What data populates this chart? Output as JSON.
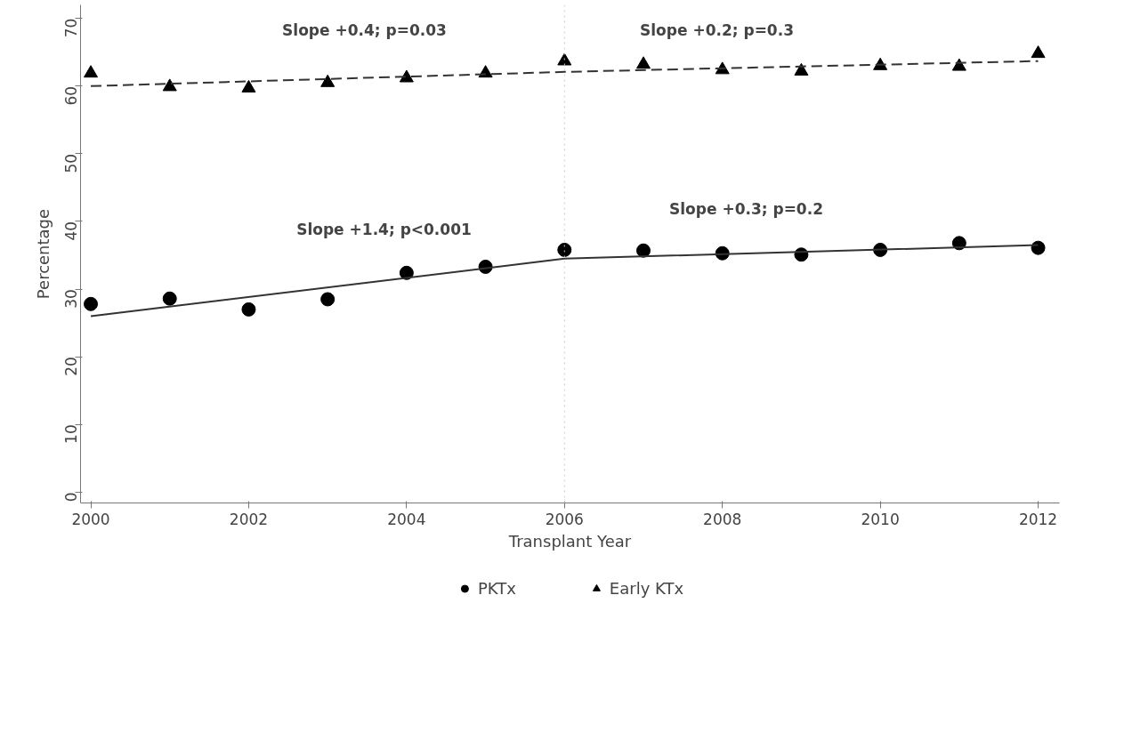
{
  "chart_data": {
    "type": "scatter",
    "xlabel": "Transplant Year",
    "ylabel": "Percentage",
    "x": [
      2000,
      2001,
      2002,
      2003,
      2004,
      2005,
      2006,
      2007,
      2008,
      2009,
      2010,
      2011,
      2012
    ],
    "xlim": [
      1999.87,
      2012.27
    ],
    "ylim": [
      -1.6,
      72
    ],
    "xticks": [
      2000,
      2002,
      2004,
      2006,
      2008,
      2010,
      2012
    ],
    "yticks": [
      0,
      10,
      20,
      30,
      40,
      50,
      60,
      70
    ],
    "grid": false,
    "legend": "bottom",
    "series": [
      {
        "name": "PKTx",
        "color": "#000000",
        "marker": "circle",
        "values": [
          27.8,
          28.6,
          27.0,
          28.5,
          32.4,
          33.3,
          35.8,
          35.7,
          35.3,
          35.1,
          35.8,
          36.8,
          36.1
        ]
      },
      {
        "name": "Early KTx",
        "color": "#000000",
        "marker": "triangle",
        "values": [
          61.9,
          59.9,
          59.7,
          60.5,
          61.2,
          61.9,
          63.7,
          63.2,
          62.4,
          62.2,
          63.0,
          62.9,
          64.8
        ]
      },
      {
        "type": "line",
        "color": "#333333",
        "line_style": "solid",
        "marker": "none",
        "x": [
          2000,
          2006,
          2012
        ],
        "values": [
          26.0,
          34.5,
          36.5
        ]
      },
      {
        "type": "line",
        "color": "#333333",
        "line_style": "dashed",
        "marker": "none",
        "x": [
          2000,
          2006,
          2012
        ],
        "values": [
          60.0,
          62.1,
          63.7
        ]
      }
    ],
    "ref_lines": [
      {
        "axis": "x",
        "value": 2006,
        "color": "#cccccc",
        "line_style": "dotted"
      }
    ],
    "annotations": [
      "Slope +0.4; p=0.03",
      "Slope +0.2; p=0.3",
      "Slope +1.4; p<0.001",
      "Slope +0.3; p=0.2"
    ]
  }
}
